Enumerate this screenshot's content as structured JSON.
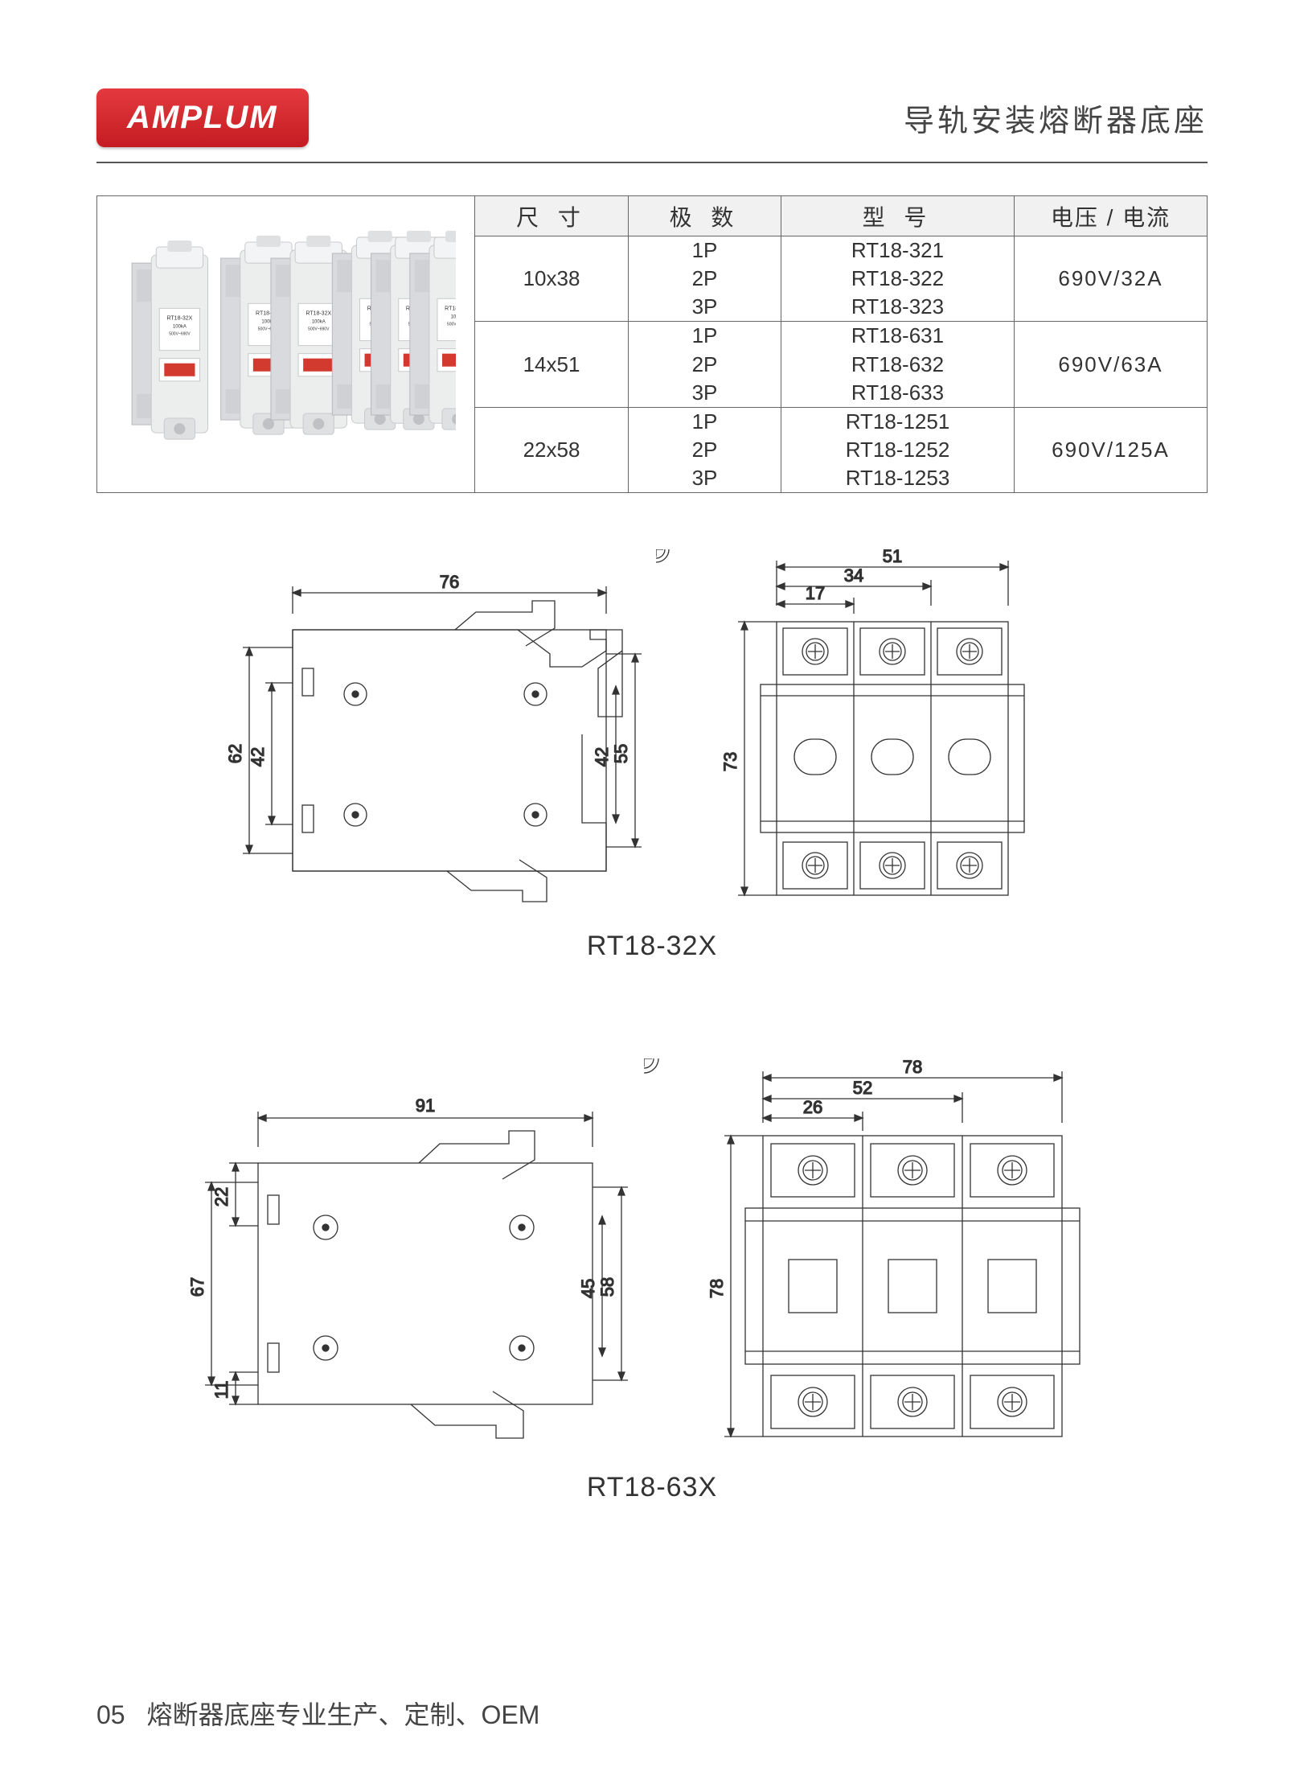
{
  "header": {
    "brand": "AMPLUM",
    "title": "导轨安装熔断器底座"
  },
  "spec_table": {
    "headers": {
      "size": "尺 寸",
      "poles": "极 数",
      "model": "型 号",
      "volt": "电压 / 电流"
    },
    "rows": [
      {
        "size": "10x38",
        "poles": [
          "1P",
          "2P",
          "3P"
        ],
        "models": [
          "RT18-321",
          "RT18-322",
          "RT18-323"
        ],
        "volt": "690V/32A"
      },
      {
        "size": "14x51",
        "poles": [
          "1P",
          "2P",
          "3P"
        ],
        "models": [
          "RT18-631",
          "RT18-632",
          "RT18-633"
        ],
        "volt": "690V/63A"
      },
      {
        "size": "22x58",
        "poles": [
          "1P",
          "2P",
          "3P"
        ],
        "models": [
          "RT18-1251",
          "RT18-1252",
          "RT18-1253"
        ],
        "volt": "690V/125A"
      }
    ]
  },
  "drawings": {
    "rt32": {
      "label": "RT18-32X",
      "side": {
        "w": 76,
        "h62": 62,
        "h42": 42,
        "h55": 55,
        "h42r": 42
      },
      "front": {
        "w51": 51,
        "w34": 34,
        "w17": 17,
        "h73": 73
      }
    },
    "rt63": {
      "label": "RT18-63X",
      "side": {
        "w91": 91,
        "h22": 22,
        "h67": 67,
        "h11": 11,
        "h58": 58,
        "h45": 45
      },
      "front": {
        "w78": 78,
        "w52": 52,
        "w26": 26,
        "h78": 78
      }
    }
  },
  "footer": {
    "page": "05",
    "text": "熔断器底座专业生产、定制、OEM"
  },
  "colors": {
    "line": "#333333",
    "light": "#888888",
    "accent": "#d23a30",
    "product_body": "#e9eaec",
    "product_shadow": "#c8cacd"
  }
}
